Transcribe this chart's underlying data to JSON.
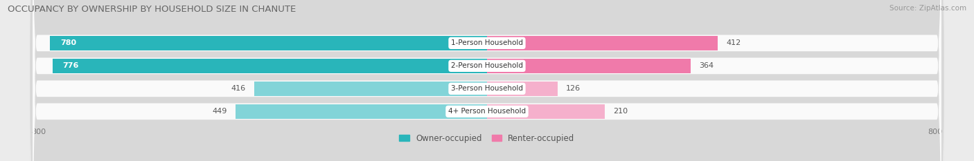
{
  "title": "OCCUPANCY BY OWNERSHIP BY HOUSEHOLD SIZE IN CHANUTE",
  "source": "Source: ZipAtlas.com",
  "categories": [
    "1-Person Household",
    "2-Person Household",
    "3-Person Household",
    "4+ Person Household"
  ],
  "owner_values": [
    780,
    776,
    416,
    449
  ],
  "renter_values": [
    412,
    364,
    126,
    210
  ],
  "owner_color_dark": "#29b5ba",
  "owner_color_light": "#82d4d8",
  "renter_color_dark": "#f07aaa",
  "renter_color_light": "#f5b0cc",
  "axis_max": 800,
  "background_color": "#ebebeb",
  "bar_background": "#fafafa",
  "bar_border_color": "#d8d8d8",
  "title_fontsize": 9.5,
  "source_fontsize": 7.5,
  "legend_fontsize": 8.5,
  "bar_label_fontsize": 8,
  "category_fontsize": 7.5,
  "tick_fontsize": 8
}
